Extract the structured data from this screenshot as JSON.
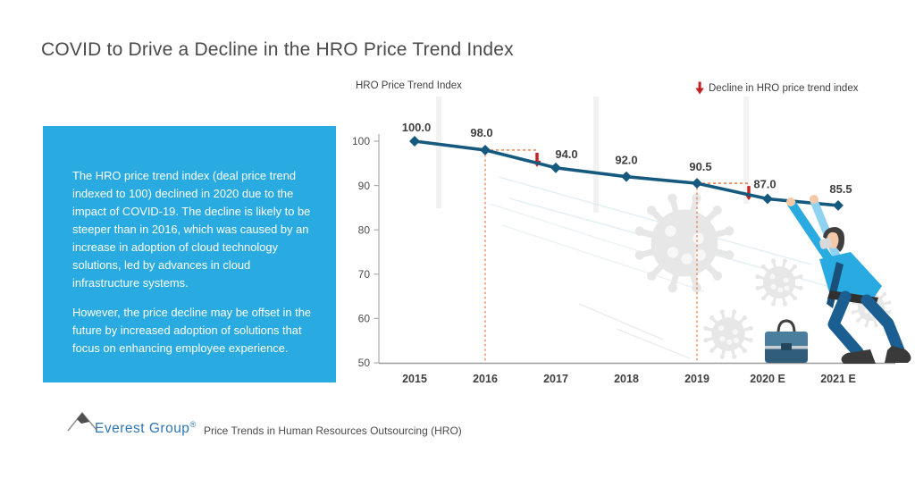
{
  "title": "COVID to Drive a Decline in the HRO Price Trend Index",
  "insight_box": {
    "paragraphs": [
      "The HRO price trend index (deal price trend indexed to 100) declined in 2020 due to the impact of COVID-19. The decline is likely to be steeper than in 2016, which was caused by an increase in adoption of cloud technology solutions, led by advances in cloud infrastructure systems.",
      "However, the price decline may be offset in the future by increased adoption of solutions that focus on enhancing employee experience."
    ]
  },
  "chart_data": {
    "type": "line",
    "title": "HRO Price Trend Index",
    "legend_label": "Decline in HRO price trend index",
    "legend_icon": "red-down-arrow",
    "legend_position": "top-right",
    "categories": [
      "2015",
      "2016",
      "2017",
      "2018",
      "2019",
      "2020 E",
      "2021 E"
    ],
    "values": [
      100.0,
      98.0,
      94.0,
      92.0,
      90.5,
      87.0,
      85.5
    ],
    "point_labels": [
      "100.0",
      "98.0",
      "94.0",
      "92.0",
      "90.5",
      "87.0",
      "85.5"
    ],
    "ylim": [
      50,
      100
    ],
    "yticks": [
      50,
      60,
      70,
      80,
      90,
      100
    ],
    "grid": false,
    "line_color": "#16597F",
    "annotation_color": "#F0763F",
    "arrow_color": "#C32026",
    "annotations": {
      "dashed_decline_segments": [
        [
          "2015",
          "2016"
        ],
        [
          "2018",
          "2019"
        ]
      ],
      "dotted_verticals": [
        "2016",
        "2019"
      ],
      "decline_arrows_before": [
        "2017",
        "2020 E"
      ]
    }
  },
  "footer": {
    "brand": "Everest Group",
    "registered_mark": "®",
    "caption": "Price Trends in Human Resources Outsourcing (HRO)"
  },
  "colors": {
    "insight_box_bg": "#29ABE2",
    "insight_text": "#FFFFFF",
    "title_text": "#4A4A4A",
    "axis_text": "#4D4D4D",
    "label_text": "#3F3F3F",
    "brand_blue": "#2E76B5",
    "virus_gray": "#E7E7E7"
  }
}
